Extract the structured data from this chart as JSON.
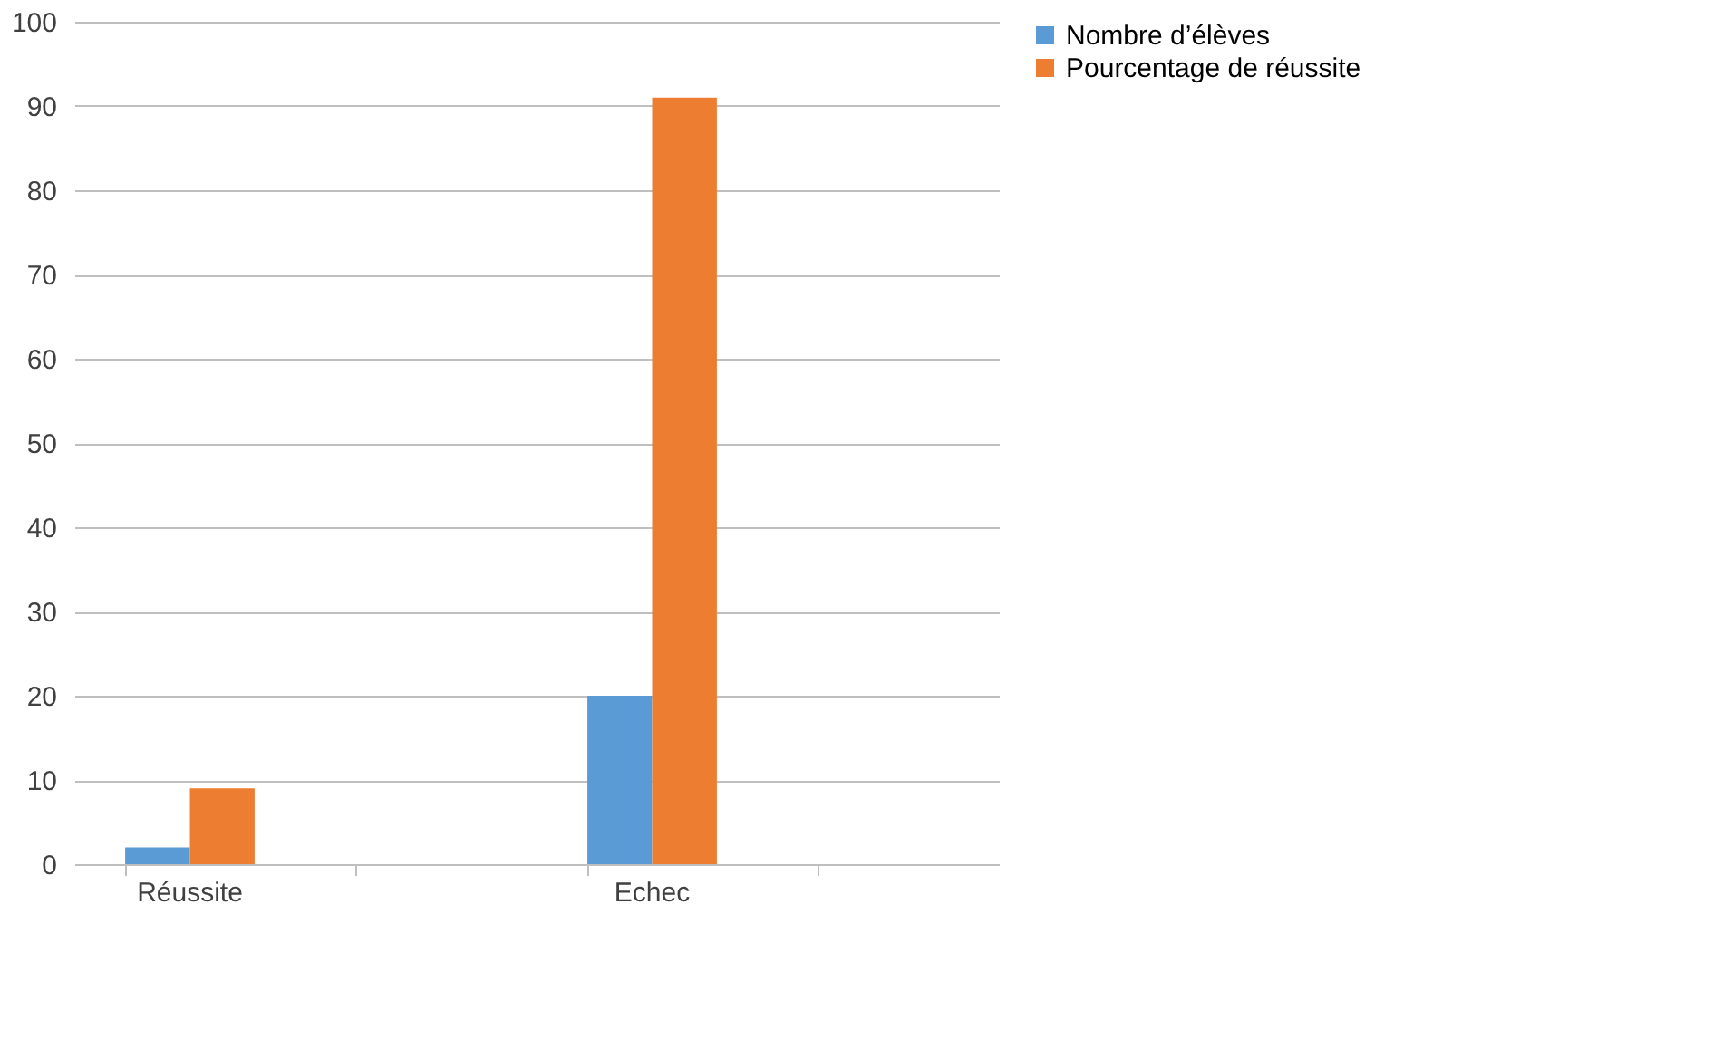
{
  "chart_data": {
    "type": "bar",
    "categories": [
      "Réussite",
      null,
      "Echec",
      null
    ],
    "series": [
      {
        "name": "Nombre d’élèves",
        "color": "#5b9bd5",
        "values": [
          2,
          null,
          20,
          null
        ]
      },
      {
        "name": "Pourcentage de réussite",
        "color": "#ed7d31",
        "values": [
          9,
          null,
          91,
          null
        ]
      }
    ],
    "ylim": [
      0,
      100
    ],
    "yticks": [
      0,
      10,
      20,
      30,
      40,
      50,
      60,
      70,
      80,
      90,
      100
    ],
    "grid": "y",
    "legend": "right"
  }
}
